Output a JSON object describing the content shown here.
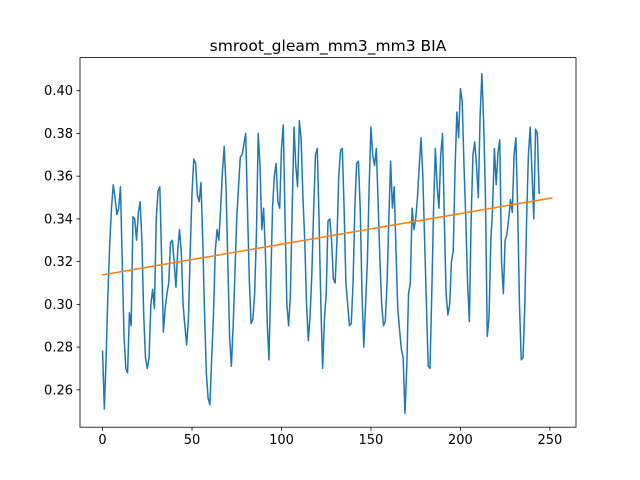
{
  "chart_data": {
    "type": "line",
    "title": "smroot_gleam_mm3_mm3 BIA",
    "xlabel": "",
    "ylabel": "",
    "xlim": [
      -12.6,
      264.6
    ],
    "ylim": [
      0.2425,
      0.4155
    ],
    "x_ticks": [
      {
        "value": 0,
        "label": "0"
      },
      {
        "value": 50,
        "label": "50"
      },
      {
        "value": 100,
        "label": "100"
      },
      {
        "value": 150,
        "label": "150"
      },
      {
        "value": 200,
        "label": "200"
      },
      {
        "value": 250,
        "label": "250"
      }
    ],
    "y_ticks": [
      {
        "value": 0.26,
        "label": "0.26"
      },
      {
        "value": 0.28,
        "label": "0.28"
      },
      {
        "value": 0.3,
        "label": "0.30"
      },
      {
        "value": 0.32,
        "label": "0.32"
      },
      {
        "value": 0.34,
        "label": "0.34"
      },
      {
        "value": 0.36,
        "label": "0.36"
      },
      {
        "value": 0.38,
        "label": "0.38"
      },
      {
        "value": 0.4,
        "label": "0.40"
      }
    ],
    "grid": false,
    "legend": "none",
    "series": [
      {
        "color": "#1f77b4",
        "points": [
          [
            0,
            0.278
          ],
          [
            1,
            0.251
          ],
          [
            2,
            0.275
          ],
          [
            3,
            0.305
          ],
          [
            4,
            0.328
          ],
          [
            5,
            0.345
          ],
          [
            6,
            0.356
          ],
          [
            7,
            0.35
          ],
          [
            8,
            0.342
          ],
          [
            9,
            0.345
          ],
          [
            10,
            0.355
          ],
          [
            11,
            0.32
          ],
          [
            12,
            0.285
          ],
          [
            13,
            0.27
          ],
          [
            14,
            0.268
          ],
          [
            15,
            0.296
          ],
          [
            16,
            0.29
          ],
          [
            17,
            0.341
          ],
          [
            18,
            0.34
          ],
          [
            19,
            0.33
          ],
          [
            20,
            0.343
          ],
          [
            21,
            0.348
          ],
          [
            22,
            0.33
          ],
          [
            23,
            0.295
          ],
          [
            24,
            0.275
          ],
          [
            25,
            0.27
          ],
          [
            26,
            0.275
          ],
          [
            27,
            0.3
          ],
          [
            28,
            0.307
          ],
          [
            29,
            0.298
          ],
          [
            30,
            0.34
          ],
          [
            31,
            0.353
          ],
          [
            32,
            0.355
          ],
          [
            33,
            0.322
          ],
          [
            34,
            0.287
          ],
          [
            35,
            0.298
          ],
          [
            36,
            0.305
          ],
          [
            37,
            0.31
          ],
          [
            38,
            0.329
          ],
          [
            39,
            0.33
          ],
          [
            40,
            0.32
          ],
          [
            41,
            0.308
          ],
          [
            42,
            0.325
          ],
          [
            43,
            0.335
          ],
          [
            44,
            0.325
          ],
          [
            45,
            0.3
          ],
          [
            46,
            0.29
          ],
          [
            47,
            0.281
          ],
          [
            48,
            0.293
          ],
          [
            49,
            0.325
          ],
          [
            50,
            0.352
          ],
          [
            51,
            0.368
          ],
          [
            52,
            0.366
          ],
          [
            53,
            0.351
          ],
          [
            54,
            0.348
          ],
          [
            55,
            0.357
          ],
          [
            56,
            0.33
          ],
          [
            57,
            0.296
          ],
          [
            58,
            0.268
          ],
          [
            59,
            0.256
          ],
          [
            60,
            0.253
          ],
          [
            61,
            0.275
          ],
          [
            62,
            0.295
          ],
          [
            63,
            0.325
          ],
          [
            64,
            0.335
          ],
          [
            65,
            0.33
          ],
          [
            66,
            0.345
          ],
          [
            67,
            0.362
          ],
          [
            68,
            0.374
          ],
          [
            69,
            0.355
          ],
          [
            70,
            0.32
          ],
          [
            71,
            0.285
          ],
          [
            72,
            0.271
          ],
          [
            73,
            0.29
          ],
          [
            74,
            0.315
          ],
          [
            75,
            0.34
          ],
          [
            76,
            0.355
          ],
          [
            77,
            0.369
          ],
          [
            78,
            0.37
          ],
          [
            79,
            0.375
          ],
          [
            80,
            0.38
          ],
          [
            81,
            0.345
          ],
          [
            82,
            0.312
          ],
          [
            83,
            0.291
          ],
          [
            84,
            0.293
          ],
          [
            85,
            0.305
          ],
          [
            86,
            0.333
          ],
          [
            87,
            0.38
          ],
          [
            88,
            0.365
          ],
          [
            89,
            0.335
          ],
          [
            90,
            0.345
          ],
          [
            91,
            0.325
          ],
          [
            92,
            0.292
          ],
          [
            93,
            0.274
          ],
          [
            94,
            0.31
          ],
          [
            95,
            0.345
          ],
          [
            96,
            0.36
          ],
          [
            97,
            0.366
          ],
          [
            98,
            0.348
          ],
          [
            99,
            0.345
          ],
          [
            100,
            0.373
          ],
          [
            101,
            0.384
          ],
          [
            102,
            0.34
          ],
          [
            103,
            0.3
          ],
          [
            104,
            0.29
          ],
          [
            105,
            0.305
          ],
          [
            106,
            0.345
          ],
          [
            107,
            0.383
          ],
          [
            108,
            0.365
          ],
          [
            109,
            0.355
          ],
          [
            110,
            0.386
          ],
          [
            111,
            0.377
          ],
          [
            112,
            0.35
          ],
          [
            113,
            0.33
          ],
          [
            114,
            0.3
          ],
          [
            115,
            0.283
          ],
          [
            116,
            0.295
          ],
          [
            117,
            0.315
          ],
          [
            118,
            0.345
          ],
          [
            119,
            0.37
          ],
          [
            120,
            0.373
          ],
          [
            121,
            0.34
          ],
          [
            122,
            0.3
          ],
          [
            123,
            0.27
          ],
          [
            124,
            0.293
          ],
          [
            125,
            0.305
          ],
          [
            126,
            0.339
          ],
          [
            127,
            0.34
          ],
          [
            128,
            0.33
          ],
          [
            129,
            0.312
          ],
          [
            130,
            0.31
          ],
          [
            131,
            0.33
          ],
          [
            132,
            0.36
          ],
          [
            133,
            0.372
          ],
          [
            134,
            0.373
          ],
          [
            135,
            0.345
          ],
          [
            136,
            0.31
          ],
          [
            137,
            0.3
          ],
          [
            138,
            0.29
          ],
          [
            139,
            0.291
          ],
          [
            140,
            0.31
          ],
          [
            141,
            0.345
          ],
          [
            142,
            0.366
          ],
          [
            143,
            0.367
          ],
          [
            144,
            0.345
          ],
          [
            145,
            0.305
          ],
          [
            146,
            0.28
          ],
          [
            147,
            0.3
          ],
          [
            148,
            0.32
          ],
          [
            149,
            0.355
          ],
          [
            150,
            0.383
          ],
          [
            151,
            0.37
          ],
          [
            152,
            0.365
          ],
          [
            153,
            0.373
          ],
          [
            154,
            0.348
          ],
          [
            155,
            0.321
          ],
          [
            156,
            0.3
          ],
          [
            157,
            0.29
          ],
          [
            158,
            0.292
          ],
          [
            159,
            0.31
          ],
          [
            160,
            0.34
          ],
          [
            161,
            0.367
          ],
          [
            162,
            0.345
          ],
          [
            163,
            0.355
          ],
          [
            164,
            0.325
          ],
          [
            165,
            0.298
          ],
          [
            166,
            0.288
          ],
          [
            167,
            0.279
          ],
          [
            168,
            0.275
          ],
          [
            169,
            0.249
          ],
          [
            170,
            0.27
          ],
          [
            171,
            0.305
          ],
          [
            172,
            0.31
          ],
          [
            173,
            0.345
          ],
          [
            174,
            0.335
          ],
          [
            175,
            0.34
          ],
          [
            176,
            0.35
          ],
          [
            177,
            0.365
          ],
          [
            178,
            0.378
          ],
          [
            179,
            0.36
          ],
          [
            180,
            0.33
          ],
          [
            181,
            0.3
          ],
          [
            182,
            0.271
          ],
          [
            183,
            0.27
          ],
          [
            184,
            0.305
          ],
          [
            185,
            0.345
          ],
          [
            186,
            0.373
          ],
          [
            187,
            0.355
          ],
          [
            188,
            0.345
          ],
          [
            189,
            0.37
          ],
          [
            190,
            0.38
          ],
          [
            191,
            0.34
          ],
          [
            192,
            0.305
          ],
          [
            193,
            0.295
          ],
          [
            194,
            0.3
          ],
          [
            195,
            0.32
          ],
          [
            196,
            0.325
          ],
          [
            197,
            0.363
          ],
          [
            198,
            0.39
          ],
          [
            199,
            0.378
          ],
          [
            200,
            0.401
          ],
          [
            201,
            0.395
          ],
          [
            202,
            0.365
          ],
          [
            203,
            0.34
          ],
          [
            204,
            0.31
          ],
          [
            205,
            0.292
          ],
          [
            206,
            0.34
          ],
          [
            207,
            0.37
          ],
          [
            208,
            0.376
          ],
          [
            209,
            0.365
          ],
          [
            210,
            0.35
          ],
          [
            211,
            0.388
          ],
          [
            212,
            0.408
          ],
          [
            213,
            0.385
          ],
          [
            214,
            0.35
          ],
          [
            215,
            0.285
          ],
          [
            216,
            0.294
          ],
          [
            217,
            0.33
          ],
          [
            218,
            0.345
          ],
          [
            219,
            0.373
          ],
          [
            220,
            0.356
          ],
          [
            221,
            0.371
          ],
          [
            222,
            0.377
          ],
          [
            223,
            0.32
          ],
          [
            224,
            0.305
          ],
          [
            225,
            0.33
          ],
          [
            226,
            0.333
          ],
          [
            227,
            0.34
          ],
          [
            228,
            0.349
          ],
          [
            229,
            0.343
          ],
          [
            230,
            0.37
          ],
          [
            231,
            0.378
          ],
          [
            232,
            0.345
          ],
          [
            233,
            0.3
          ],
          [
            234,
            0.274
          ],
          [
            235,
            0.275
          ],
          [
            236,
            0.3
          ],
          [
            237,
            0.34
          ],
          [
            238,
            0.37
          ],
          [
            239,
            0.383
          ],
          [
            240,
            0.362
          ],
          [
            241,
            0.34
          ],
          [
            242,
            0.382
          ],
          [
            243,
            0.38
          ],
          [
            244,
            0.352
          ]
        ]
      },
      {
        "color": "#ff7f0e",
        "points": [
          [
            0,
            0.3138
          ],
          [
            251,
            0.3498
          ]
        ]
      }
    ],
    "colors": {
      "axes": "#000000",
      "background": "#ffffff"
    }
  }
}
